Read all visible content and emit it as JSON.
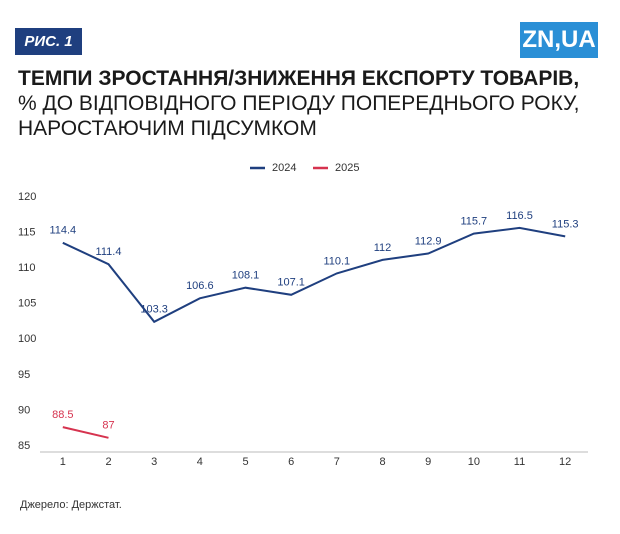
{
  "badge": "РИС. 1",
  "logo": "ZN,UA",
  "chart_data": {
    "type": "line",
    "title": "ТЕМПИ ЗРОСТАННЯ/ЗНИЖЕННЯ ЕКСПОРТУ ТОВАРІВ,",
    "subtitle": "% ДО ВІДПОВІДНОГО ПЕРІОДУ ПОПЕРЕДНЬОГО РОКУ, НАРОСТАЮЧИМ ПІДСУМКОМ",
    "categories": [
      "1",
      "2",
      "3",
      "4",
      "5",
      "6",
      "7",
      "8",
      "9",
      "10",
      "11",
      "12"
    ],
    "series": [
      {
        "name": "2024",
        "color": "#1f3f7f",
        "values": [
          114.4,
          111.4,
          103.3,
          106.6,
          108.1,
          107.1,
          110.1,
          112,
          112.9,
          115.7,
          116.5,
          115.3
        ]
      },
      {
        "name": "2025",
        "color": "#d6334f",
        "values": [
          88.5,
          87,
          null,
          null,
          null,
          null,
          null,
          null,
          null,
          null,
          null,
          null
        ]
      }
    ],
    "ylim": [
      85,
      120
    ],
    "yticks": [
      85,
      90,
      95,
      100,
      105,
      110,
      115,
      120
    ],
    "grid": false,
    "legend": "top",
    "source": "Джерело: Держстат."
  }
}
